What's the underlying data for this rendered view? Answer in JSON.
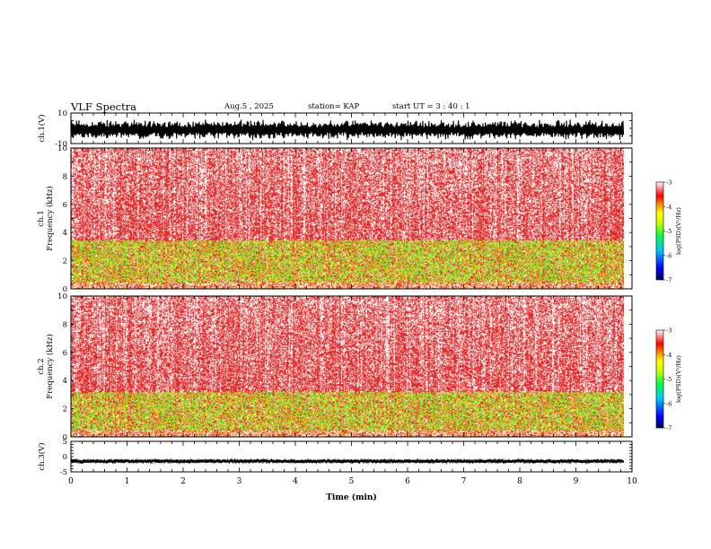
{
  "header": {
    "title": "VLF Spectra",
    "date": "Aug.5  , 2025",
    "station": "station= KAP",
    "start": "start  UT  =   3  : 40 : 1"
  },
  "colors": {
    "background": "#ffffff",
    "spectrogram_base": "#e42b2b",
    "colorbar": [
      "#000080",
      "#0000ff",
      "#00c0ff",
      "#00ff40",
      "#c0ff00",
      "#ffff00",
      "#ff0000",
      "#ff8080",
      "#ffffff"
    ]
  },
  "chart_data": {
    "type": "heatmap",
    "title": "VLF Spectra",
    "time_axis": {
      "label": "Time  (min)",
      "range": [
        0,
        10
      ],
      "ticks": [
        "0",
        "1",
        "2",
        "3",
        "4",
        "5",
        "6",
        "7",
        "8",
        "9",
        "10"
      ],
      "data_end_min": 9.85
    },
    "panels": [
      {
        "id": "ch1-waveform",
        "kind": "waveform",
        "ylabel": "ch.1(V)",
        "ylim": [
          -10,
          10
        ],
        "tick_labels": [
          "10",
          "-10"
        ],
        "envelope": {
          "mean": -1,
          "amplitude_max": 7
        }
      },
      {
        "id": "ch1-spectrogram",
        "kind": "spectrogram",
        "ylabel": "ch.1\nFrequency  (kHz)",
        "ylim": [
          0,
          10
        ],
        "tick_labels": [
          "0",
          "2",
          "4",
          "6",
          "8",
          "10"
        ],
        "emission_band_khz": [
          0.5,
          3.5
        ],
        "colorbar": {
          "label": "log(PSD)(V²/Hz)",
          "range": [
            -7,
            -3
          ],
          "tick_labels": [
            "-3",
            "-4",
            "-5",
            "-6",
            "-7"
          ]
        }
      },
      {
        "id": "ch2-spectrogram",
        "kind": "spectrogram",
        "ylabel": "ch.2\nFrequency  (kHz)",
        "ylim": [
          0,
          10
        ],
        "tick_labels": [
          "0",
          "2",
          "4",
          "6",
          "8",
          "10"
        ],
        "emission_band_khz": [
          0.5,
          3.2
        ],
        "colorbar": {
          "label": "log(PSD)(V²/Hz)",
          "range": [
            -7,
            -3
          ],
          "tick_labels": [
            "-3",
            "-4",
            "-5",
            "-6",
            "-7"
          ]
        }
      },
      {
        "id": "ch3-waveform",
        "kind": "waveform",
        "ylabel": "ch.3(V)",
        "ylim": [
          -5,
          5
        ],
        "tick_labels": [
          "5",
          "0",
          "-5"
        ],
        "envelope": {
          "mean": -1.5,
          "amplitude_max": 0.8
        }
      }
    ]
  }
}
